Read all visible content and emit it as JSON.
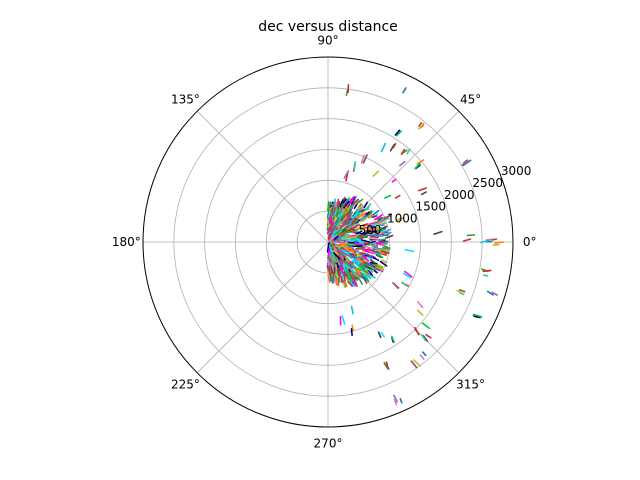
{
  "chart_data": {
    "type": "scatter",
    "projection": "polar",
    "title": "dec versus distance",
    "theta_unit": "degrees",
    "theta_ticks": [
      0,
      45,
      90,
      135,
      180,
      225,
      270,
      315
    ],
    "theta_tick_labels": [
      "0°",
      "45°",
      "90°",
      "135°",
      "180°",
      "225°",
      "270°",
      "315°"
    ],
    "r_ticks": [
      500,
      1000,
      1500,
      2000,
      2500,
      3000
    ],
    "r_tick_labels": [
      "500",
      "1000",
      "1500",
      "2000",
      "2500",
      "3000"
    ],
    "rlim": [
      0,
      3000
    ],
    "grid": true,
    "legend": "none",
    "marker": "short colored dash per star",
    "palette": [
      "#2ca02c",
      "#d62728",
      "#9467bd",
      "#1f77b4",
      "#e377c2",
      "#17becf",
      "#8c564b",
      "#bcbd22",
      "#ff7f0e",
      "#000080",
      "#00cc44",
      "#ff00ff",
      "#00e5ff",
      "#444444",
      "#cc3333",
      "#33cc99"
    ],
    "dense_cluster": {
      "theta_range_deg": [
        -90,
        90
      ],
      "r_range": [
        0,
        1000
      ],
      "approx_points": 900
    },
    "outliers": [
      {
        "theta": 83,
        "r": 2500
      },
      {
        "theta": 63,
        "r": 2800
      },
      {
        "theta": 52,
        "r": 2450
      },
      {
        "theta": 58,
        "r": 2150
      },
      {
        "theta": 56,
        "r": 1900
      },
      {
        "theta": 49,
        "r": 1950
      },
      {
        "theta": 47,
        "r": 1800
      },
      {
        "theta": 60,
        "r": 1750
      },
      {
        "theta": 40,
        "r": 1950
      },
      {
        "theta": 43,
        "r": 1500
      },
      {
        "theta": 33,
        "r": 1400
      },
      {
        "theta": 30,
        "r": 2550
      },
      {
        "theta": 22,
        "r": 1050
      },
      {
        "theta": 18,
        "r": 1200
      },
      {
        "theta": 11,
        "r": 900
      },
      {
        "theta": 5,
        "r": 1800
      },
      {
        "theta": 2,
        "r": 2300
      },
      {
        "theta": 1,
        "r": 2600
      },
      {
        "theta": 0,
        "r": 2750
      },
      {
        "theta": -1,
        "r": 900
      },
      {
        "theta": -6,
        "r": 1300
      },
      {
        "theta": -11,
        "r": 2600
      },
      {
        "theta": -18,
        "r": 2800
      },
      {
        "theta": -20,
        "r": 2350
      },
      {
        "theta": -26,
        "r": 2700
      },
      {
        "theta": -22,
        "r": 1350
      },
      {
        "theta": -28,
        "r": 1450
      },
      {
        "theta": -33,
        "r": 1350
      },
      {
        "theta": -34,
        "r": 1750
      },
      {
        "theta": -37,
        "r": 1900
      },
      {
        "theta": -40,
        "r": 2050
      },
      {
        "theta": -44,
        "r": 2250
      },
      {
        "theta": -46,
        "r": 2100
      },
      {
        "theta": -50,
        "r": 2350
      },
      {
        "theta": -54,
        "r": 2450
      },
      {
        "theta": -56,
        "r": 1900
      },
      {
        "theta": -60,
        "r": 1700
      },
      {
        "theta": -64,
        "r": 2250
      },
      {
        "theta": -66,
        "r": 2800
      },
      {
        "theta": -70,
        "r": 1200
      },
      {
        "theta": -75,
        "r": 1500
      },
      {
        "theta": -80,
        "r": 1300
      },
      {
        "theta": 70,
        "r": 1300
      },
      {
        "theta": 75,
        "r": 1100
      },
      {
        "theta": 66,
        "r": 1500
      },
      {
        "theta": 54,
        "r": 1300
      },
      {
        "theta": 36,
        "r": 1200
      },
      {
        "theta": 28,
        "r": 1700
      }
    ]
  }
}
